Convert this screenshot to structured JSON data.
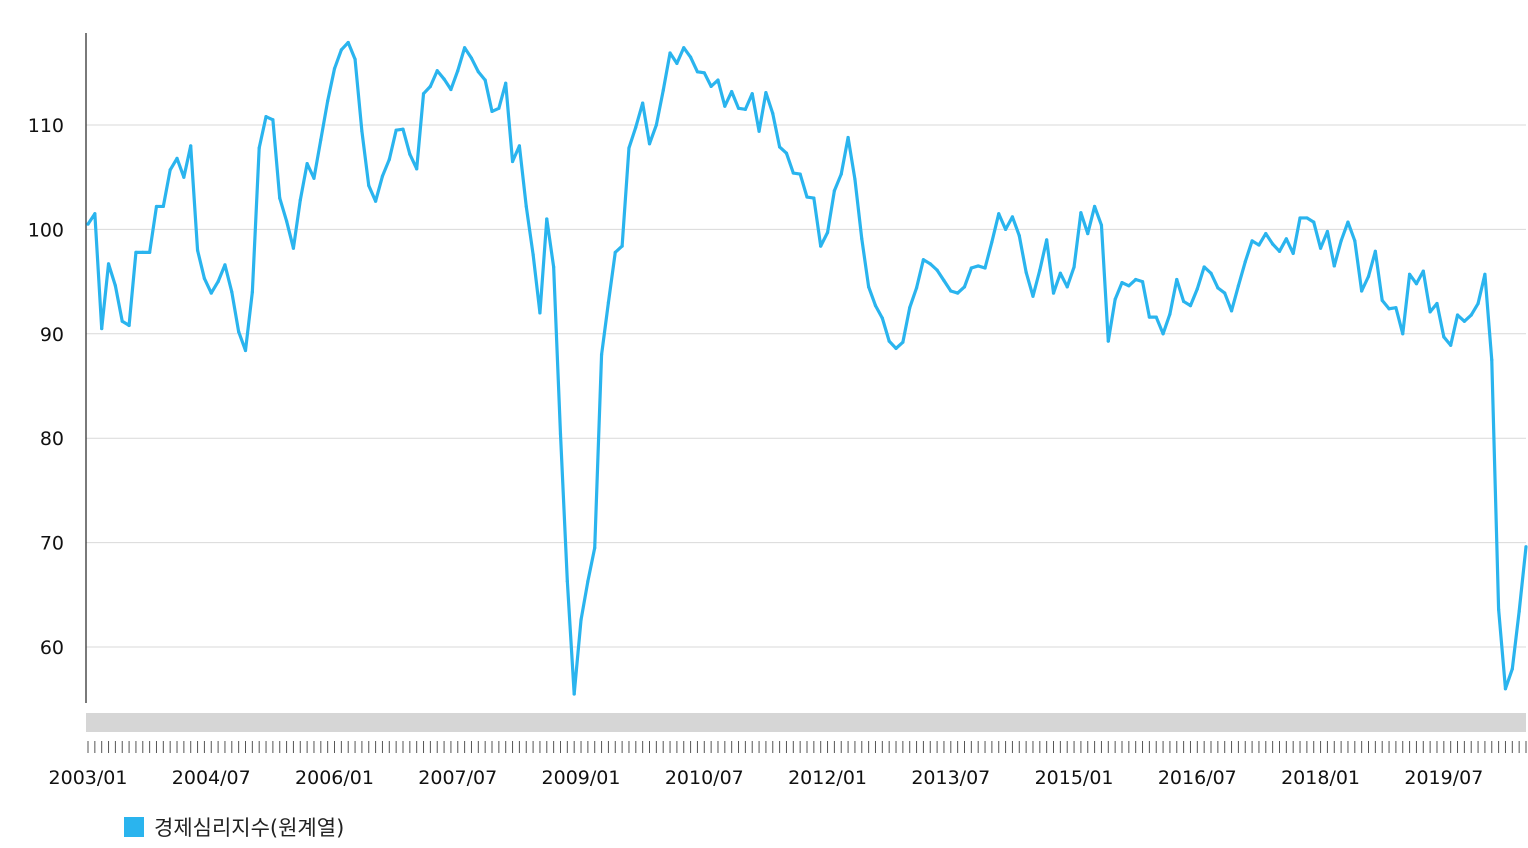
{
  "chart_data": {
    "type": "line",
    "title": "",
    "xlabel": "",
    "ylabel": "",
    "ylim": [
      55,
      119
    ],
    "y_ticks": [
      60,
      70,
      80,
      90,
      100,
      110
    ],
    "x_start": "2003/01",
    "x_tick_labels": [
      "2003/01",
      "2004/07",
      "2006/01",
      "2007/07",
      "2009/01",
      "2010/07",
      "2012/01",
      "2013/07",
      "2015/01",
      "2016/07",
      "2018/01",
      "2019/07"
    ],
    "grid": true,
    "legend_position": "bottom-left",
    "series": [
      {
        "name": "경제심리지수(원계열)",
        "color": "#2ab4ee",
        "x": [
          "2003/01",
          "2003/02",
          "2003/03",
          "2003/04",
          "2003/05",
          "2003/06",
          "2003/07",
          "2003/08",
          "2003/09",
          "2003/10",
          "2003/11",
          "2003/12",
          "2004/01",
          "2004/02",
          "2004/03",
          "2004/04",
          "2004/05",
          "2004/06",
          "2004/07",
          "2004/08",
          "2004/09",
          "2004/10",
          "2004/11",
          "2004/12",
          "2005/01",
          "2005/02",
          "2005/03",
          "2005/04",
          "2005/05",
          "2005/06",
          "2005/07",
          "2005/08",
          "2005/09",
          "2005/10",
          "2005/11",
          "2005/12",
          "2006/01",
          "2006/02",
          "2006/03",
          "2006/04",
          "2006/05",
          "2006/06",
          "2006/07",
          "2006/08",
          "2006/09",
          "2006/10",
          "2006/11",
          "2006/12",
          "2007/01",
          "2007/02",
          "2007/03",
          "2007/04",
          "2007/05",
          "2007/06",
          "2007/07",
          "2007/08",
          "2007/09",
          "2007/10",
          "2007/11",
          "2007/12",
          "2008/01",
          "2008/02",
          "2008/03",
          "2008/04",
          "2008/05",
          "2008/06",
          "2008/07",
          "2008/08",
          "2008/09",
          "2008/10",
          "2008/11",
          "2008/12",
          "2009/01",
          "2009/02",
          "2009/03",
          "2009/04",
          "2009/05",
          "2009/06",
          "2009/07",
          "2009/08",
          "2009/09",
          "2009/10",
          "2009/11",
          "2009/12",
          "2010/01",
          "2010/02",
          "2010/03",
          "2010/04",
          "2010/05",
          "2010/06",
          "2010/07",
          "2010/08",
          "2010/09",
          "2010/10",
          "2010/11",
          "2010/12",
          "2011/01",
          "2011/02",
          "2011/03",
          "2011/04",
          "2011/05",
          "2011/06",
          "2011/07",
          "2011/08",
          "2011/09",
          "2011/10",
          "2011/11",
          "2011/12",
          "2012/01",
          "2012/02",
          "2012/03",
          "2012/04",
          "2012/05",
          "2012/06",
          "2012/07",
          "2012/08",
          "2012/09",
          "2012/10",
          "2012/11",
          "2012/12",
          "2013/01",
          "2013/02",
          "2013/03",
          "2013/04",
          "2013/05",
          "2013/06",
          "2013/07",
          "2013/08",
          "2013/09",
          "2013/10",
          "2013/11",
          "2013/12",
          "2014/01",
          "2014/02",
          "2014/03",
          "2014/04",
          "2014/05",
          "2014/06",
          "2014/07",
          "2014/08",
          "2014/09",
          "2014/10",
          "2014/11",
          "2014/12",
          "2015/01",
          "2015/02",
          "2015/03",
          "2015/04",
          "2015/05",
          "2015/06",
          "2015/07",
          "2015/08",
          "2015/09",
          "2015/10",
          "2015/11",
          "2015/12",
          "2016/01",
          "2016/02",
          "2016/03",
          "2016/04",
          "2016/05",
          "2016/06",
          "2016/07",
          "2016/08",
          "2016/09",
          "2016/10",
          "2016/11",
          "2016/12",
          "2017/01",
          "2017/02",
          "2017/03",
          "2017/04",
          "2017/05",
          "2017/06",
          "2017/07",
          "2017/08",
          "2017/09",
          "2017/10",
          "2017/11",
          "2017/12",
          "2018/01",
          "2018/02",
          "2018/03",
          "2018/04",
          "2018/05",
          "2018/06",
          "2018/07",
          "2018/08",
          "2018/09",
          "2018/10",
          "2018/11",
          "2018/12",
          "2019/01",
          "2019/02",
          "2019/03",
          "2019/04",
          "2019/05",
          "2019/06",
          "2019/07",
          "2019/08",
          "2019/09",
          "2019/10",
          "2019/11",
          "2019/12",
          "2020/01",
          "2020/02",
          "2020/03",
          "2020/04",
          "2020/05",
          "2020/06",
          "2020/07"
        ],
        "values": [
          100.5,
          101.5,
          90.5,
          96.7,
          94.6,
          91.2,
          90.8,
          97.8,
          97.8,
          97.8,
          102.2,
          102.2,
          105.7,
          106.8,
          105.0,
          108.0,
          98.0,
          95.3,
          93.9,
          95.0,
          96.6,
          94.0,
          90.2,
          88.4,
          94.0,
          107.8,
          110.8,
          110.5,
          103.0,
          100.8,
          98.2,
          102.8,
          106.3,
          104.9,
          108.6,
          112.3,
          115.4,
          117.2,
          117.9,
          116.3,
          109.4,
          104.2,
          102.7,
          105.1,
          106.7,
          109.5,
          109.6,
          107.2,
          105.8,
          113.0,
          113.7,
          115.2,
          114.4,
          113.4,
          115.2,
          117.4,
          116.4,
          115.1,
          114.3,
          111.3,
          111.6,
          114.0,
          106.5,
          108.0,
          102.2,
          97.6,
          92.0,
          101.0,
          96.4,
          80.4,
          66.3,
          55.5,
          62.6,
          66.3,
          69.5,
          88.0,
          93.0,
          97.8,
          98.4,
          107.8,
          109.8,
          112.1,
          108.2,
          110.0,
          113.3,
          116.9,
          115.9,
          117.4,
          116.5,
          115.1,
          115.0,
          113.7,
          114.3,
          111.8,
          113.2,
          111.6,
          111.5,
          113.0,
          109.4,
          113.1,
          111.1,
          107.9,
          107.3,
          105.4,
          105.3,
          103.1,
          103.0,
          98.4,
          99.7,
          103.7,
          105.3,
          108.8,
          104.8,
          99.1,
          94.5,
          92.7,
          91.5,
          89.3,
          88.6,
          89.2,
          92.5,
          94.4,
          97.1,
          96.7,
          96.1,
          95.1,
          94.1,
          93.9,
          94.5,
          96.3,
          96.5,
          96.3,
          98.8,
          101.5,
          100.0,
          101.2,
          99.4,
          95.9,
          93.6,
          96.1,
          99.0,
          93.9,
          95.8,
          94.5,
          96.4,
          101.6,
          99.6,
          102.2,
          100.4,
          89.3,
          93.3,
          94.9,
          94.6,
          95.2,
          95.0,
          91.6,
          91.6,
          90.0,
          91.9,
          95.2,
          93.1,
          92.7,
          94.3,
          96.4,
          95.8,
          94.4,
          93.9,
          92.2,
          94.6,
          96.9,
          98.9,
          98.5,
          99.6,
          98.6,
          97.9,
          99.1,
          97.7,
          101.1,
          101.1,
          100.7,
          98.2,
          99.8,
          96.5,
          98.9,
          100.7,
          98.9,
          94.1,
          95.5,
          97.9,
          93.2,
          92.4,
          92.5,
          90.0,
          95.7,
          94.8,
          96.0,
          92.1,
          92.9,
          89.7,
          88.9,
          91.8,
          91.2,
          91.8,
          92.9,
          95.7,
          87.5,
          63.6,
          56.0,
          57.9,
          63.4,
          69.6
        ]
      }
    ]
  }
}
